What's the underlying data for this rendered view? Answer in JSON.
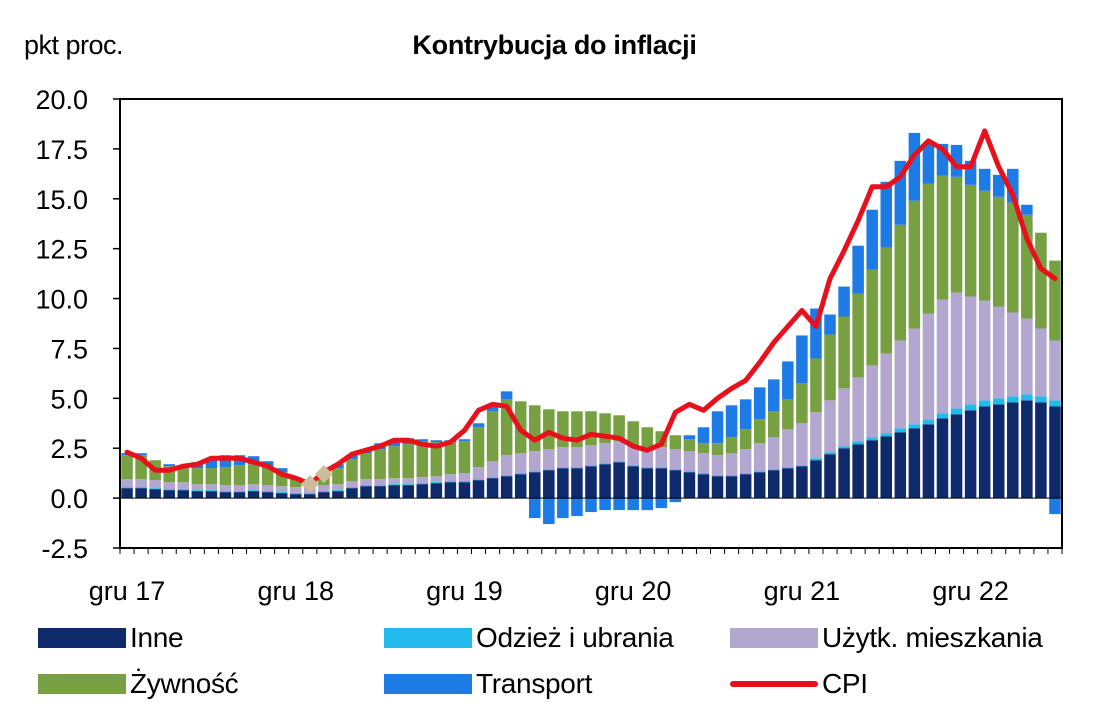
{
  "unit_label": "pkt proc.",
  "chart_data": {
    "type": "stacked-bar-with-line",
    "title": "Kontrybucja do inflacji",
    "ylabel": "pkt proc.",
    "ylim": [
      -2.5,
      20.0
    ],
    "yticks": [
      "20.0",
      "17.5",
      "15.0",
      "12.5",
      "10.0",
      "7.5",
      "5.0",
      "2.5",
      "0.0",
      "-2.5"
    ],
    "x_tick_labels": [
      "gru 17",
      "gru 18",
      "gru 19",
      "gru 20",
      "gru 21",
      "gru 22"
    ],
    "x_tick_index": [
      0,
      12,
      24,
      36,
      48,
      60
    ],
    "months": 67,
    "series": [
      {
        "name": "Inne",
        "color": "#0f2a6b",
        "values": [
          0.5,
          0.5,
          0.45,
          0.4,
          0.4,
          0.35,
          0.35,
          0.3,
          0.3,
          0.35,
          0.3,
          0.25,
          0.2,
          0.2,
          0.3,
          0.35,
          0.5,
          0.6,
          0.6,
          0.65,
          0.65,
          0.7,
          0.75,
          0.8,
          0.8,
          0.9,
          1.0,
          1.1,
          1.2,
          1.3,
          1.4,
          1.5,
          1.5,
          1.6,
          1.7,
          1.8,
          1.6,
          1.5,
          1.5,
          1.4,
          1.3,
          1.2,
          1.1,
          1.1,
          1.2,
          1.3,
          1.4,
          1.5,
          1.6,
          1.9,
          2.2,
          2.5,
          2.7,
          2.9,
          3.1,
          3.3,
          3.5,
          3.7,
          4.0,
          4.2,
          4.4,
          4.6,
          4.7,
          4.8,
          4.9,
          4.8,
          4.6
        ]
      },
      {
        "name": "Odzież i ubrania",
        "color": "#22b9ec",
        "values": [
          0.05,
          0.05,
          0.05,
          0.05,
          0.05,
          0.05,
          0.05,
          0.05,
          0.05,
          0.05,
          0.05,
          0.05,
          0.05,
          0.05,
          0.05,
          0.05,
          0.05,
          0.05,
          0.05,
          0.05,
          0.05,
          0.05,
          0.05,
          0.05,
          0.05,
          0.05,
          0.05,
          0.05,
          0.05,
          0.05,
          0.05,
          0.05,
          0.05,
          0.05,
          0.05,
          0.05,
          0.05,
          0.05,
          0.05,
          0.05,
          0.05,
          0.05,
          0.05,
          0.05,
          0.05,
          0.05,
          0.05,
          0.05,
          0.05,
          0.1,
          0.1,
          0.1,
          0.15,
          0.15,
          0.15,
          0.2,
          0.2,
          0.25,
          0.25,
          0.3,
          0.3,
          0.3,
          0.3,
          0.3,
          0.3,
          0.3,
          0.3
        ]
      },
      {
        "name": "Użytk. mieszkania",
        "color": "#b3a6cf",
        "values": [
          0.4,
          0.4,
          0.4,
          0.35,
          0.35,
          0.3,
          0.3,
          0.3,
          0.3,
          0.3,
          0.3,
          0.3,
          0.3,
          0.3,
          0.3,
          0.3,
          0.3,
          0.3,
          0.3,
          0.3,
          0.3,
          0.3,
          0.3,
          0.35,
          0.4,
          0.6,
          0.8,
          1.0,
          1.0,
          1.0,
          1.0,
          1.0,
          1.0,
          1.0,
          1.0,
          1.0,
          1.0,
          1.0,
          1.0,
          1.0,
          1.0,
          1.0,
          1.0,
          1.1,
          1.2,
          1.4,
          1.6,
          1.9,
          2.1,
          2.3,
          2.6,
          2.9,
          3.2,
          3.6,
          4.0,
          4.4,
          4.8,
          5.3,
          5.7,
          5.8,
          5.4,
          5.0,
          4.6,
          4.2,
          3.8,
          3.4,
          3.0
        ]
      },
      {
        "name": "Żywność",
        "color": "#76a041",
        "values": [
          1.2,
          1.2,
          1.0,
          0.8,
          0.7,
          0.8,
          0.8,
          0.9,
          1.0,
          1.0,
          0.9,
          0.7,
          0.5,
          0.3,
          0.4,
          0.8,
          1.1,
          1.3,
          1.5,
          1.6,
          1.7,
          1.8,
          1.7,
          1.6,
          1.6,
          2.0,
          2.5,
          2.8,
          2.6,
          2.3,
          2.0,
          1.8,
          1.8,
          1.7,
          1.5,
          1.3,
          1.2,
          1.0,
          0.8,
          0.7,
          0.6,
          0.5,
          0.6,
          0.8,
          1.0,
          1.2,
          1.3,
          1.5,
          2.0,
          2.7,
          3.3,
          3.6,
          4.2,
          4.8,
          5.3,
          5.8,
          6.4,
          6.5,
          6.2,
          5.8,
          5.6,
          5.5,
          5.5,
          5.5,
          5.2,
          4.8,
          4.0
        ]
      },
      {
        "name": "Transport",
        "color": "#1e7be6",
        "values": [
          0.1,
          0.1,
          0.0,
          0.1,
          0.1,
          0.3,
          0.5,
          0.6,
          0.5,
          0.4,
          0.3,
          0.2,
          0.0,
          0.1,
          0.0,
          0.2,
          0.2,
          0.2,
          0.3,
          0.3,
          0.3,
          0.1,
          0.1,
          0.1,
          0.1,
          0.2,
          0.3,
          0.4,
          0.0,
          -1.0,
          -1.3,
          -1.0,
          -0.9,
          -0.7,
          -0.6,
          -0.6,
          -0.6,
          -0.6,
          -0.5,
          -0.2,
          0.2,
          0.8,
          1.6,
          1.6,
          1.5,
          1.6,
          1.6,
          1.9,
          2.4,
          2.5,
          1.0,
          1.5,
          2.4,
          3.0,
          3.3,
          3.2,
          3.4,
          2.0,
          1.6,
          1.6,
          1.2,
          1.1,
          1.1,
          1.7,
          0.5,
          0.0,
          -0.8
        ]
      },
      {
        "name": "CPI",
        "color": "#e8101b",
        "type": "line",
        "values": [
          2.3,
          2.0,
          1.4,
          1.4,
          1.6,
          1.7,
          2.0,
          2.0,
          2.0,
          1.8,
          1.6,
          1.2,
          1.0,
          0.7,
          1.3,
          1.7,
          2.2,
          2.4,
          2.6,
          2.9,
          2.9,
          2.7,
          2.6,
          2.8,
          3.4,
          4.4,
          4.7,
          4.6,
          3.4,
          2.9,
          3.3,
          3.0,
          2.9,
          3.2,
          3.1,
          3.0,
          2.6,
          2.4,
          2.7,
          4.3,
          4.7,
          4.4,
          5.0,
          5.5,
          5.9,
          6.8,
          7.8,
          8.6,
          9.4,
          8.6,
          11.0,
          12.4,
          13.9,
          15.6,
          15.6,
          16.1,
          17.2,
          17.9,
          17.5,
          16.6,
          16.6,
          18.4,
          16.6,
          15.2,
          13.0,
          11.5,
          11.0
        ]
      }
    ],
    "markers": [
      {
        "name": "dot-1",
        "color": "#cbbd9a",
        "x_index": 13,
        "y": 0.7
      },
      {
        "name": "dot-2",
        "color": "#cbbd9a",
        "x_index": 14,
        "y": 1.2
      }
    ],
    "legend": [
      {
        "name": "Inne",
        "color": "#0f2a6b",
        "kind": "bar"
      },
      {
        "name": "Odzież i ubrania",
        "color": "#22b9ec",
        "kind": "bar"
      },
      {
        "name": "Użytk. mieszkania",
        "color": "#b3a6cf",
        "kind": "bar"
      },
      {
        "name": "Żywność",
        "color": "#76a041",
        "kind": "bar"
      },
      {
        "name": "Transport",
        "color": "#1e7be6",
        "kind": "bar"
      },
      {
        "name": "CPI",
        "color": "#e8101b",
        "kind": "line"
      }
    ]
  }
}
